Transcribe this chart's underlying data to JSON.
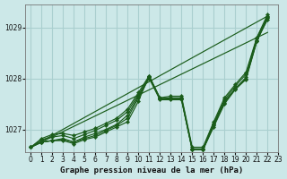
{
  "title": "Graphe pression niveau de la mer (hPa)",
  "bg_color": "#cce8e8",
  "grid_color": "#aacfcf",
  "line_color": "#1a5c1a",
  "xlim": [
    -0.5,
    23
  ],
  "ylim": [
    1026.55,
    1029.45
  ],
  "yticks": [
    1027,
    1028,
    1029
  ],
  "xticks": [
    0,
    1,
    2,
    3,
    4,
    5,
    6,
    7,
    8,
    9,
    10,
    11,
    12,
    13,
    14,
    15,
    16,
    17,
    18,
    19,
    20,
    21,
    22,
    23
  ],
  "series": [
    [
      1026.65,
      1026.75,
      1026.78,
      1026.78,
      1026.72,
      1026.8,
      1026.85,
      1026.95,
      1027.05,
      1027.15,
      1027.55,
      1028.05,
      1027.6,
      1027.6,
      1027.6,
      1026.6,
      1026.6,
      1027.1,
      1027.55,
      1027.8,
      1028.0,
      1028.75,
      1029.15
    ],
    [
      1026.65,
      1026.75,
      1026.78,
      1026.8,
      1026.75,
      1026.82,
      1026.88,
      1026.98,
      1027.08,
      1027.22,
      1027.62,
      1028.0,
      1027.58,
      1027.58,
      1027.58,
      1026.6,
      1026.6,
      1027.05,
      1027.5,
      1027.78,
      1027.98,
      1028.72,
      1029.18
    ],
    [
      1026.65,
      1026.75,
      1026.78,
      1026.82,
      1026.75,
      1026.85,
      1026.92,
      1027.0,
      1027.1,
      1027.28,
      1027.65,
      1028.02,
      1027.6,
      1027.6,
      1027.6,
      1026.6,
      1026.6,
      1027.08,
      1027.52,
      1027.8,
      1028.02,
      1028.73,
      1029.2
    ],
    [
      1026.65,
      1026.8,
      1026.85,
      1026.88,
      1026.82,
      1026.9,
      1026.98,
      1027.08,
      1027.18,
      1027.35,
      1027.68,
      1028.03,
      1027.6,
      1027.62,
      1027.62,
      1026.62,
      1026.62,
      1027.12,
      1027.58,
      1027.85,
      1028.08,
      1028.78,
      1029.22
    ],
    [
      1026.65,
      1026.82,
      1026.9,
      1026.92,
      1026.88,
      1026.95,
      1027.02,
      1027.12,
      1027.22,
      1027.4,
      1027.72,
      1028.05,
      1027.62,
      1027.65,
      1027.65,
      1026.65,
      1026.65,
      1027.15,
      1027.62,
      1027.88,
      1028.12,
      1028.8,
      1029.25
    ]
  ],
  "straight_series": [
    {
      "x": [
        0,
        22
      ],
      "y": [
        1026.65,
        1029.22
      ]
    },
    {
      "x": [
        0,
        22
      ],
      "y": [
        1026.65,
        1028.9
      ]
    }
  ]
}
